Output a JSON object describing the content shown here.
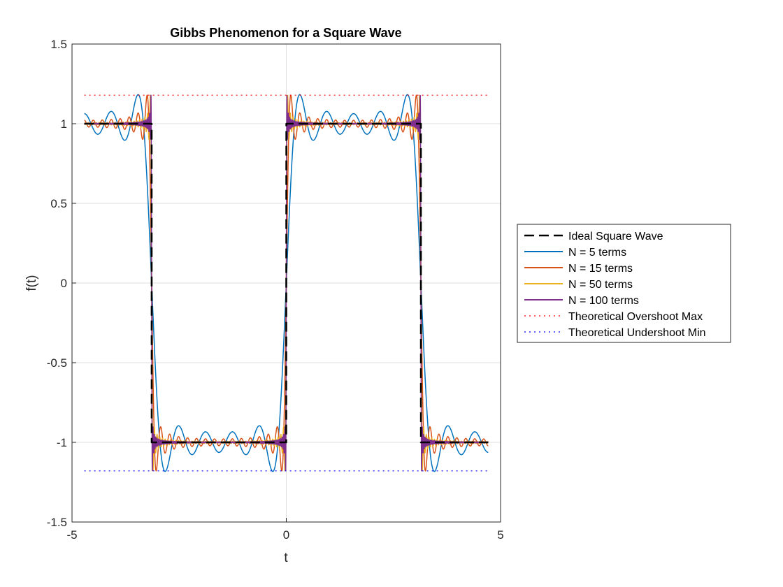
{
  "chart_data": {
    "type": "line",
    "title": "Gibbs Phenomenon for a Square Wave",
    "xlabel": "t",
    "ylabel": "f(t)",
    "xlim": [
      -5,
      5
    ],
    "ylim": [
      -1.5,
      1.5
    ],
    "x_domain": [
      -4.7124,
      4.7124
    ],
    "xticks": [
      -5,
      0,
      5
    ],
    "xtick_labels": [
      "-5",
      "0",
      "5"
    ],
    "yticks": [
      -1.5,
      -1,
      -0.5,
      0,
      0.5,
      1,
      1.5
    ],
    "ytick_labels": [
      "-1.5",
      "-1",
      "-0.5",
      "0",
      "0.5",
      "1",
      "1.5"
    ],
    "grid": true,
    "legend_position": "outside-right",
    "series": [
      {
        "name": "Ideal Square Wave",
        "kind": "ideal",
        "color": "#000000",
        "style": "dashed"
      },
      {
        "name": "N = 5 terms",
        "kind": "fourier",
        "terms": 5,
        "color": "#0072BD",
        "style": "solid"
      },
      {
        "name": "N = 15 terms",
        "kind": "fourier",
        "terms": 15,
        "color": "#D95319",
        "style": "solid"
      },
      {
        "name": "N = 50 terms",
        "kind": "fourier",
        "terms": 50,
        "color": "#EDB120",
        "style": "solid"
      },
      {
        "name": "N = 100 terms",
        "kind": "fourier",
        "terms": 100,
        "color": "#7E2F8E",
        "style": "solid"
      },
      {
        "name": "Theoretical Overshoot Max",
        "kind": "hline",
        "value": 1.179,
        "color": "#FF0000",
        "style": "dotted"
      },
      {
        "name": "Theoretical Undershoot Min",
        "kind": "hline",
        "value": -1.179,
        "color": "#0000FF",
        "style": "dotted"
      }
    ]
  }
}
